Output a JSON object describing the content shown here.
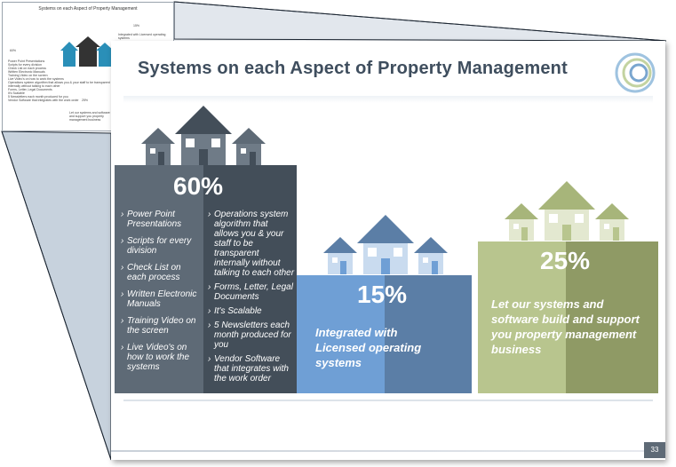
{
  "thumbnail": {
    "title": "Systems on each Aspect of Property Management",
    "pct_60": "60%",
    "pct_15": "15%",
    "pct_25": "25%",
    "line_15": "Integrated with Licensed operating systems",
    "line_25": "Let our systems and software build and support you property management business",
    "items": [
      "Power Point Presentations",
      "Scripts for every division",
      "Check List on each process",
      "Written Electronic Manuals",
      "Training Video on the screen",
      "Live Video's on how to work the systems",
      "Operations system algorithm that allows you & your staff to be transparent internally without talking to each other",
      "Forms, Letter, Legal Documents",
      "It's Scalable",
      "5 Newsletters each month produced for you",
      "Vendor Software that integrates with the work order"
    ]
  },
  "slide": {
    "title": "Systems on each Aspect of Property Management",
    "page_number": "33",
    "col60": {
      "percent": "60%",
      "left_items": [
        "Power Point Presentations",
        "Scripts for every division",
        "Check List on each process",
        "Written Electronic Manuals",
        "Training Video on the screen",
        "Live Video's on how to work the systems"
      ],
      "right_items": [
        "Operations system algorithm that allows you & your staff to be transparent internally without talking to each other",
        "Forms, Letter, Legal Documents",
        "It's Scalable",
        "5 Newsletters each month produced for you",
        "Vendor Software that integrates with the work order"
      ]
    },
    "col15": {
      "percent": "15%",
      "text": "Integrated with Licensed operating systems"
    },
    "col25": {
      "percent": "25%",
      "text": "Let our systems and software build and support you property management business"
    }
  },
  "colors": {
    "dark1": "#5e6a76",
    "dark2": "#434e59",
    "blue1": "#6f9fd5",
    "blue2": "#5b7ea6",
    "green1": "#b8c58e",
    "green2": "#8f9a65",
    "title": "#3f4e5e"
  },
  "icons": [
    "house-icon",
    "logo-rings-icon"
  ]
}
